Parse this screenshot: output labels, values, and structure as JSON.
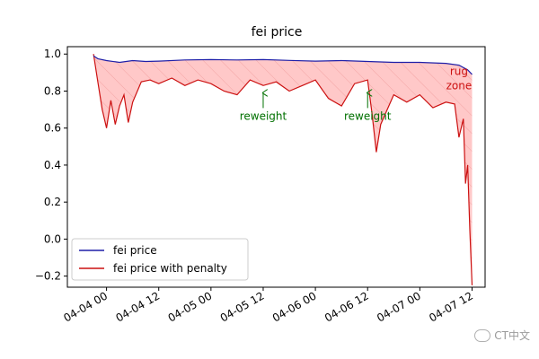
{
  "chart_data": {
    "type": "line",
    "title": "fei price",
    "xlabel": "",
    "ylabel": "",
    "ylim": [
      -0.26,
      1.04
    ],
    "xlim": [
      "2021-04-03 15:00",
      "2021-04-07 15:00"
    ],
    "yticks": [
      1.0,
      0.8,
      0.6,
      0.4,
      0.2,
      0.0,
      -0.2
    ],
    "ytick_labels": [
      "1.0",
      "0.8",
      "0.6",
      "0.4",
      "0.2",
      "0.0",
      "−0.2"
    ],
    "xticks": [
      "2021-04-04 00:00",
      "2021-04-04 12:00",
      "2021-04-05 00:00",
      "2021-04-05 12:00",
      "2021-04-06 00:00",
      "2021-04-06 12:00",
      "2021-04-07 00:00",
      "2021-04-07 12:00"
    ],
    "xtick_labels": [
      "04-04 00",
      "04-04 12",
      "04-05 00",
      "04-05 12",
      "04-06 00",
      "04-06 12",
      "04-07 00",
      "04-07 12"
    ],
    "legend_position": "lower-left",
    "grid": false,
    "fill_between": {
      "upper": "fei price",
      "lower": "fei price with penalty",
      "color": "#ffc8c8",
      "hatch_color": "#f0a0a0"
    },
    "series": [
      {
        "name": "fei price",
        "color": "#1f1fa8",
        "x": [
          "2021-04-03 21:00",
          "2021-04-03 22:00",
          "2021-04-04 00:00",
          "2021-04-04 03:00",
          "2021-04-04 06:00",
          "2021-04-04 09:00",
          "2021-04-04 12:00",
          "2021-04-04 18:00",
          "2021-04-05 00:00",
          "2021-04-05 06:00",
          "2021-04-05 12:00",
          "2021-04-05 18:00",
          "2021-04-06 00:00",
          "2021-04-06 06:00",
          "2021-04-06 12:00",
          "2021-04-06 18:00",
          "2021-04-07 00:00",
          "2021-04-07 06:00",
          "2021-04-07 09:00",
          "2021-04-07 11:00",
          "2021-04-07 12:00"
        ],
        "values": [
          0.99,
          0.975,
          0.965,
          0.955,
          0.965,
          0.96,
          0.962,
          0.968,
          0.97,
          0.968,
          0.97,
          0.966,
          0.962,
          0.965,
          0.96,
          0.955,
          0.955,
          0.95,
          0.94,
          0.915,
          0.89
        ]
      },
      {
        "name": "fei price with penalty",
        "color": "#cc1111",
        "x": [
          "2021-04-03 21:00",
          "2021-04-03 22:00",
          "2021-04-03 23:00",
          "2021-04-04 00:00",
          "2021-04-04 01:00",
          "2021-04-04 02:00",
          "2021-04-04 03:00",
          "2021-04-04 04:00",
          "2021-04-04 05:00",
          "2021-04-04 06:00",
          "2021-04-04 08:00",
          "2021-04-04 10:00",
          "2021-04-04 12:00",
          "2021-04-04 15:00",
          "2021-04-04 18:00",
          "2021-04-04 21:00",
          "2021-04-05 00:00",
          "2021-04-05 03:00",
          "2021-04-05 06:00",
          "2021-04-05 09:00",
          "2021-04-05 12:00",
          "2021-04-05 15:00",
          "2021-04-05 18:00",
          "2021-04-05 21:00",
          "2021-04-06 00:00",
          "2021-04-06 03:00",
          "2021-04-06 06:00",
          "2021-04-06 09:00",
          "2021-04-06 12:00",
          "2021-04-06 13:00",
          "2021-04-06 14:00",
          "2021-04-06 15:00",
          "2021-04-06 18:00",
          "2021-04-06 21:00",
          "2021-04-07 00:00",
          "2021-04-07 03:00",
          "2021-04-07 06:00",
          "2021-04-07 08:00",
          "2021-04-07 09:00",
          "2021-04-07 10:00",
          "2021-04-07 10:30",
          "2021-04-07 11:00",
          "2021-04-07 11:30",
          "2021-04-07 12:00"
        ],
        "values": [
          1.0,
          0.85,
          0.7,
          0.6,
          0.75,
          0.62,
          0.72,
          0.78,
          0.63,
          0.74,
          0.85,
          0.86,
          0.84,
          0.87,
          0.83,
          0.86,
          0.84,
          0.8,
          0.78,
          0.86,
          0.83,
          0.85,
          0.8,
          0.83,
          0.86,
          0.76,
          0.72,
          0.84,
          0.86,
          0.68,
          0.47,
          0.62,
          0.78,
          0.74,
          0.78,
          0.71,
          0.74,
          0.73,
          0.55,
          0.65,
          0.3,
          0.4,
          0.05,
          -0.25
        ]
      }
    ],
    "annotations": [
      {
        "text": "reweight",
        "x": "2021-04-05 12:00",
        "y": 0.8,
        "text_y": 0.65,
        "color": "#007000",
        "arrow": true
      },
      {
        "text": "reweight",
        "x": "2021-04-06 12:00",
        "y": 0.8,
        "text_y": 0.65,
        "color": "#007000",
        "arrow": true
      },
      {
        "text": "rug\nzone",
        "x": "2021-04-07 08:30",
        "y": 0.82,
        "color": "#cc1111",
        "arrow": false
      }
    ]
  },
  "watermark": {
    "text": "CT中文"
  }
}
